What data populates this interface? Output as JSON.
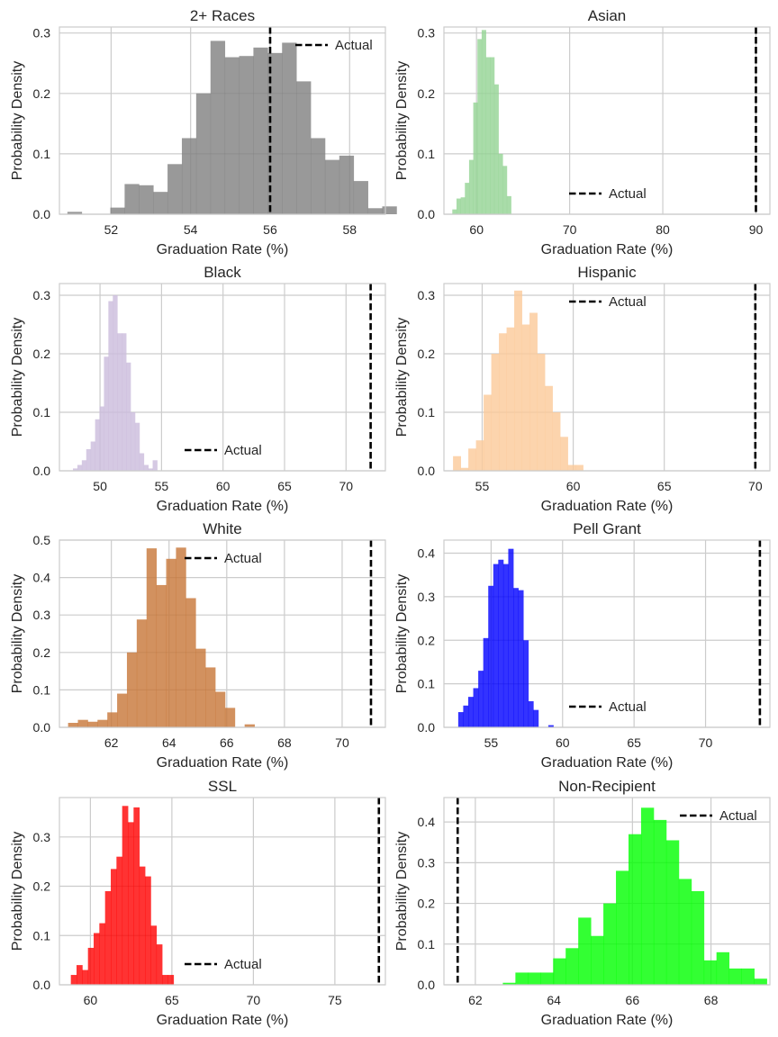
{
  "figure": {
    "background": "#ffffff",
    "grid_color": "#cccccc",
    "frame_color": "#cccccc",
    "actual_line_color": "#000000"
  },
  "chart_data": [
    {
      "type": "bar",
      "title": "2+ Races",
      "xlabel": "Graduation Rate (%)",
      "ylabel": "Probability Density",
      "color": "#808080",
      "xlim": [
        50.7,
        58.9
      ],
      "ylim": [
        0,
        0.31
      ],
      "xticks": [
        52,
        54,
        56,
        58
      ],
      "yticks": [
        0.0,
        0.1,
        0.2,
        0.3
      ],
      "ytick_format": 1,
      "bins": {
        "start": 50.9,
        "width": 0.36,
        "values": [
          0.004,
          0.0,
          0.0,
          0.011,
          0.05,
          0.048,
          0.037,
          0.083,
          0.126,
          0.2,
          0.287,
          0.26,
          0.262,
          0.276,
          0.267,
          0.284,
          0.22,
          0.126,
          0.09,
          0.097,
          0.055,
          0.01,
          0.013
        ]
      },
      "actual": 56.0,
      "legend": {
        "label": "Actual",
        "loc": "top-right"
      }
    },
    {
      "type": "bar",
      "title": "Asian",
      "xlabel": "Graduation Rate (%)",
      "ylabel": "Probability Density",
      "color": "#94d394",
      "xlim": [
        56.5,
        91.5
      ],
      "ylim": [
        0,
        0.31
      ],
      "xticks": [
        60,
        70,
        80,
        90
      ],
      "yticks": [
        0.0,
        0.1,
        0.2,
        0.3
      ],
      "ytick_format": 1,
      "bins": {
        "start": 57.4,
        "width": 0.45,
        "values": [
          0.008,
          0.026,
          0.028,
          0.052,
          0.09,
          0.185,
          0.29,
          0.305,
          0.26,
          0.26,
          0.215,
          0.1,
          0.08,
          0.03
        ]
      },
      "actual": 90.0,
      "legend": {
        "label": "Actual",
        "loc": "bottom-center"
      }
    },
    {
      "type": "bar",
      "title": "Black",
      "xlabel": "Graduation Rate (%)",
      "ylabel": "Probability Density",
      "color": "#cbbbdc",
      "xlim": [
        46.7,
        73.2
      ],
      "ylim": [
        0,
        0.32
      ],
      "xticks": [
        50,
        55,
        60,
        65,
        70
      ],
      "yticks": [
        0.0,
        0.1,
        0.2,
        0.3
      ],
      "ytick_format": 1,
      "bins": {
        "start": 47.8,
        "width": 0.36,
        "values": [
          0.004,
          0.01,
          0.018,
          0.037,
          0.05,
          0.088,
          0.11,
          0.195,
          0.29,
          0.3,
          0.235,
          0.235,
          0.185,
          0.1,
          0.082,
          0.03,
          0.01,
          0.004,
          0.018
        ]
      },
      "actual": 72.0,
      "legend": {
        "label": "Actual",
        "loc": "bottom-center"
      }
    },
    {
      "type": "bar",
      "title": "Hispanic",
      "xlabel": "Graduation Rate (%)",
      "ylabel": "Probability Density",
      "color": "#fbc998",
      "xlim": [
        52.9,
        70.8
      ],
      "ylim": [
        0,
        0.32
      ],
      "xticks": [
        55,
        60,
        65,
        70
      ],
      "yticks": [
        0.0,
        0.1,
        0.2,
        0.3
      ],
      "ytick_format": 1,
      "bins": {
        "start": 53.4,
        "width": 0.42,
        "values": [
          0.025,
          0.005,
          0.038,
          0.052,
          0.13,
          0.2,
          0.235,
          0.245,
          0.308,
          0.25,
          0.27,
          0.2,
          0.145,
          0.1,
          0.058,
          0.01,
          0.01
        ]
      },
      "actual": 70.0,
      "legend": {
        "label": "Actual",
        "loc": "top-center"
      }
    },
    {
      "type": "bar",
      "title": "White",
      "xlabel": "Graduation Rate (%)",
      "ylabel": "Probability Density",
      "color": "#c77637",
      "xlim": [
        60.2,
        71.5
      ],
      "ylim": [
        0,
        0.5
      ],
      "xticks": [
        62,
        64,
        66,
        68,
        70
      ],
      "yticks": [
        0.0,
        0.1,
        0.2,
        0.3,
        0.4,
        0.5
      ],
      "ytick_format": 1,
      "bins": {
        "start": 60.5,
        "width": 0.34,
        "values": [
          0.012,
          0.02,
          0.015,
          0.02,
          0.04,
          0.09,
          0.2,
          0.288,
          0.478,
          0.38,
          0.45,
          0.48,
          0.345,
          0.21,
          0.16,
          0.095,
          0.052,
          0.0,
          0.008
        ]
      },
      "actual": 71.0,
      "legend": {
        "label": "Actual",
        "loc": "top-center"
      }
    },
    {
      "type": "bar",
      "title": "Pell Grant",
      "xlabel": "Graduation Rate (%)",
      "ylabel": "Probability Density",
      "color": "#0000ff",
      "xlim": [
        51.7,
        74.5
      ],
      "ylim": [
        0,
        0.43
      ],
      "xticks": [
        55,
        60,
        65,
        70
      ],
      "yticks": [
        0.0,
        0.1,
        0.2,
        0.3,
        0.4
      ],
      "ytick_format": 1,
      "bins": {
        "start": 52.7,
        "width": 0.35,
        "values": [
          0.035,
          0.05,
          0.07,
          0.09,
          0.13,
          0.205,
          0.325,
          0.375,
          0.385,
          0.375,
          0.41,
          0.32,
          0.315,
          0.2,
          0.06,
          0.04,
          0.0,
          0.0,
          0.005
        ]
      },
      "actual": 73.8,
      "legend": {
        "label": "Actual",
        "loc": "bottom-center"
      }
    },
    {
      "type": "bar",
      "title": "SSL",
      "xlabel": "Graduation Rate (%)",
      "ylabel": "Probability Density",
      "color": "#ff0000",
      "xlim": [
        58.1,
        78.1
      ],
      "ylim": [
        0,
        0.38
      ],
      "xticks": [
        60,
        65,
        70,
        75
      ],
      "yticks": [
        0.0,
        0.1,
        0.2,
        0.3
      ],
      "ytick_format": 1,
      "bins": {
        "start": 58.8,
        "width": 0.35,
        "values": [
          0.02,
          0.04,
          0.03,
          0.075,
          0.105,
          0.125,
          0.19,
          0.235,
          0.26,
          0.363,
          0.33,
          0.36,
          0.24,
          0.22,
          0.12,
          0.082,
          0.02,
          0.02
        ]
      },
      "actual": 77.7,
      "legend": {
        "label": "Actual",
        "loc": "bottom-center"
      }
    },
    {
      "type": "bar",
      "title": "Non-Recipient",
      "xlabel": "Graduation Rate (%)",
      "ylabel": "Probability Density",
      "color": "#00ff00",
      "xlim": [
        61.2,
        69.5
      ],
      "ylim": [
        0,
        0.46
      ],
      "xticks": [
        62,
        64,
        66,
        68
      ],
      "yticks": [
        0.0,
        0.1,
        0.2,
        0.3,
        0.4
      ],
      "ytick_format": 1,
      "bins": {
        "start": 62.7,
        "width": 0.32,
        "values": [
          0.005,
          0.03,
          0.03,
          0.03,
          0.065,
          0.09,
          0.165,
          0.12,
          0.2,
          0.28,
          0.37,
          0.435,
          0.405,
          0.355,
          0.26,
          0.23,
          0.06,
          0.08,
          0.04,
          0.04,
          0.015
        ]
      },
      "actual": 61.55,
      "legend": {
        "label": "Actual",
        "loc": "top-right"
      }
    }
  ]
}
